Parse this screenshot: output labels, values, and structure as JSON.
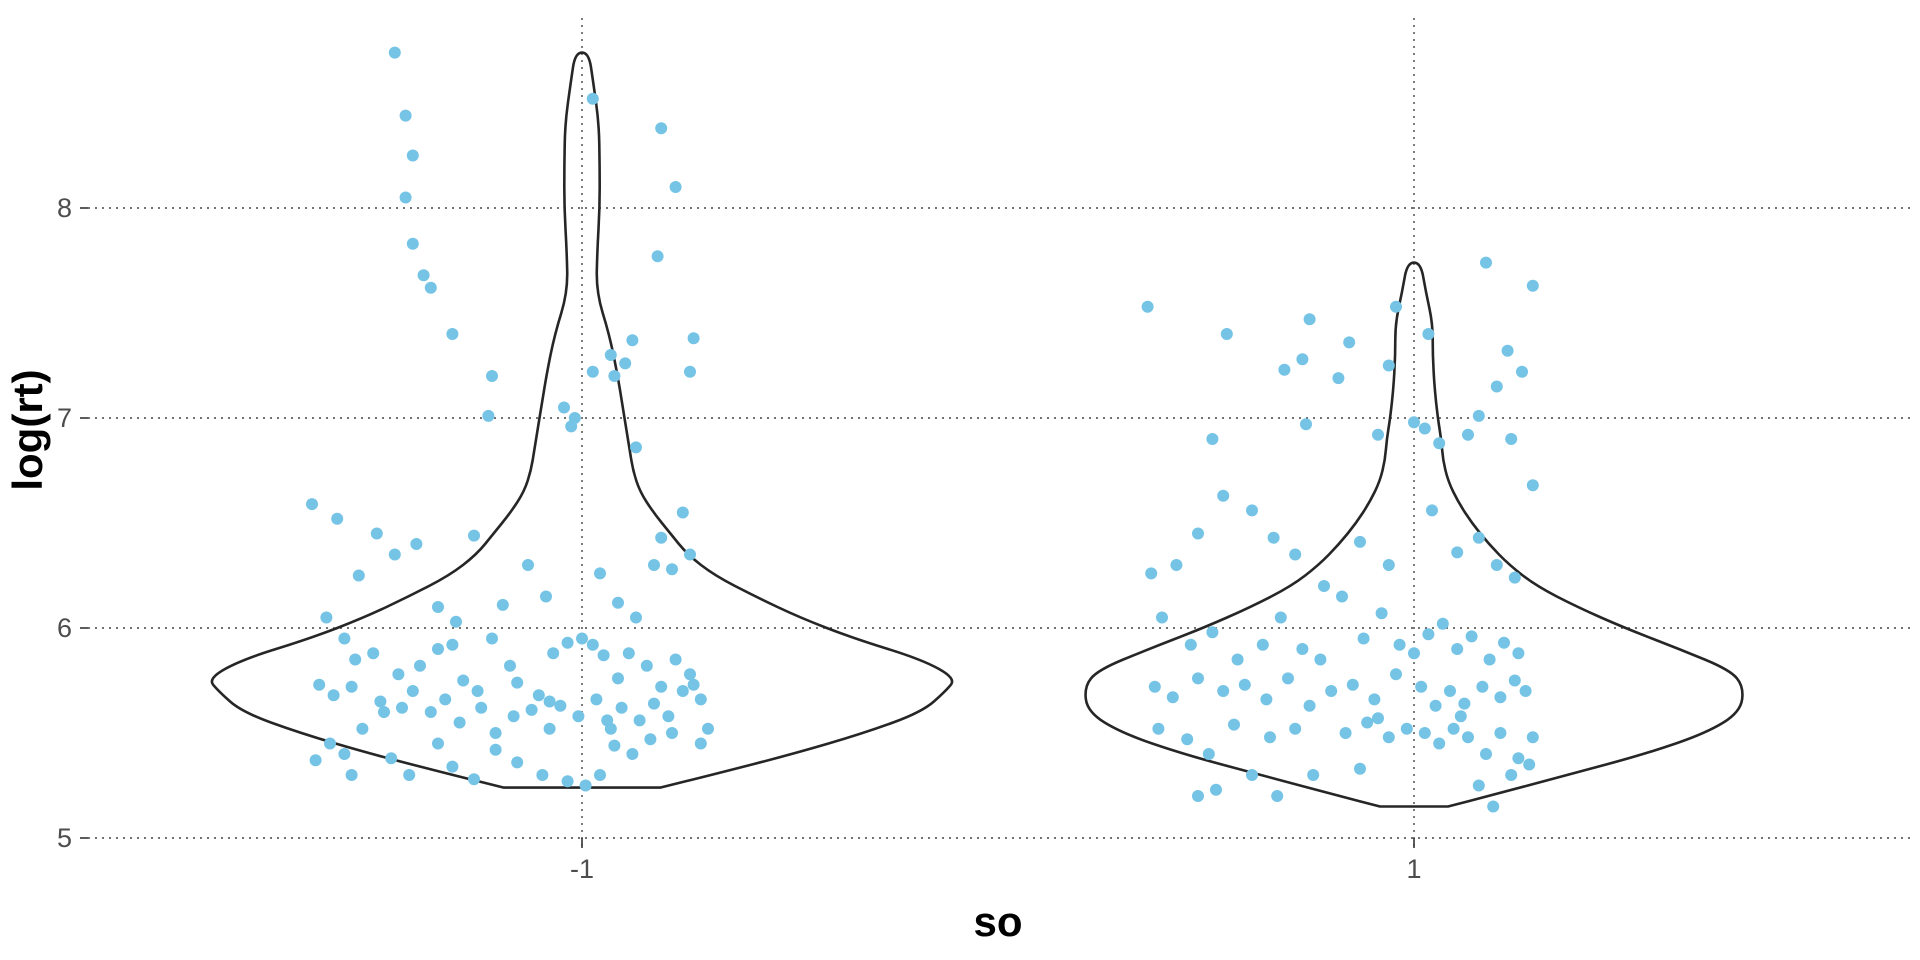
{
  "chart_data": {
    "type": "violin",
    "xlabel": "so",
    "ylabel": "log(rt)",
    "categories": [
      "-1",
      "1"
    ],
    "ylim": [
      4.95,
      8.9
    ],
    "y_ticks": [
      "5",
      "6",
      "7",
      "8"
    ],
    "grid": true,
    "point_color": "#75c4e6",
    "line_color": "#262626",
    "violins": [
      {
        "category": "-1",
        "min": 5.24,
        "max": 8.74,
        "profile": [
          [
            5.24,
            0.23
          ],
          [
            5.3,
            0.38
          ],
          [
            5.4,
            0.62
          ],
          [
            5.5,
            0.83
          ],
          [
            5.6,
            1.0
          ],
          [
            5.7,
            1.07
          ],
          [
            5.76,
            1.1
          ],
          [
            5.85,
            1.0
          ],
          [
            5.95,
            0.8
          ],
          [
            6.05,
            0.64
          ],
          [
            6.15,
            0.51
          ],
          [
            6.25,
            0.39
          ],
          [
            6.35,
            0.31
          ],
          [
            6.45,
            0.26
          ],
          [
            6.55,
            0.21
          ],
          [
            6.65,
            0.17
          ],
          [
            6.75,
            0.15
          ],
          [
            6.85,
            0.14
          ],
          [
            6.95,
            0.13
          ],
          [
            7.05,
            0.12
          ],
          [
            7.2,
            0.105
          ],
          [
            7.4,
            0.08
          ],
          [
            7.6,
            0.042
          ],
          [
            7.8,
            0.045
          ],
          [
            8.0,
            0.052
          ],
          [
            8.2,
            0.052
          ],
          [
            8.4,
            0.05
          ],
          [
            8.6,
            0.033
          ],
          [
            8.74,
            0.02
          ]
        ],
        "points": [
          [
            -0.52,
            8.74
          ],
          [
            -0.49,
            8.44
          ],
          [
            -0.47,
            8.25
          ],
          [
            -0.49,
            8.05
          ],
          [
            -0.47,
            7.83
          ],
          [
            -0.44,
            7.68
          ],
          [
            -0.42,
            7.62
          ],
          [
            -0.36,
            7.4
          ],
          [
            -0.25,
            7.2
          ],
          [
            0.03,
            8.52
          ],
          [
            -0.26,
            7.01
          ],
          [
            0.22,
            8.38
          ],
          [
            0.26,
            8.1
          ],
          [
            0.31,
            7.38
          ],
          [
            0.21,
            7.77
          ],
          [
            0.3,
            7.22
          ],
          [
            0.03,
            7.22
          ],
          [
            0.09,
            7.2
          ],
          [
            -0.05,
            7.05
          ],
          [
            -0.02,
            7.0
          ],
          [
            -0.03,
            6.96
          ],
          [
            0.14,
            7.37
          ],
          [
            0.12,
            7.26
          ],
          [
            0.08,
            7.3
          ],
          [
            0.15,
            6.86
          ],
          [
            0.28,
            6.55
          ],
          [
            0.22,
            6.43
          ],
          [
            -0.75,
            6.59
          ],
          [
            -0.68,
            6.52
          ],
          [
            -0.62,
            6.25
          ],
          [
            -0.57,
            6.45
          ],
          [
            -0.52,
            6.35
          ],
          [
            -0.46,
            6.4
          ],
          [
            -0.4,
            6.1
          ],
          [
            -0.35,
            6.03
          ],
          [
            -0.3,
            6.44
          ],
          [
            -0.22,
            6.11
          ],
          [
            -0.15,
            6.3
          ],
          [
            -0.1,
            6.15
          ],
          [
            0.05,
            6.26
          ],
          [
            0.1,
            6.12
          ],
          [
            0.15,
            6.05
          ],
          [
            0.2,
            6.3
          ],
          [
            0.25,
            6.28
          ],
          [
            0.3,
            6.35
          ],
          [
            -0.71,
            6.05
          ],
          [
            -0.66,
            5.95
          ],
          [
            -0.63,
            5.85
          ],
          [
            -0.58,
            5.88
          ],
          [
            -0.51,
            5.78
          ],
          [
            -0.45,
            5.82
          ],
          [
            -0.4,
            5.9
          ],
          [
            -0.36,
            5.92
          ],
          [
            -0.33,
            5.75
          ],
          [
            -0.29,
            5.7
          ],
          [
            -0.25,
            5.95
          ],
          [
            -0.2,
            5.82
          ],
          [
            -0.18,
            5.74
          ],
          [
            -0.12,
            5.68
          ],
          [
            -0.08,
            5.88
          ],
          [
            -0.04,
            5.93
          ],
          [
            0.0,
            5.95
          ],
          [
            0.03,
            5.92
          ],
          [
            0.06,
            5.87
          ],
          [
            0.1,
            5.76
          ],
          [
            0.13,
            5.88
          ],
          [
            0.18,
            5.82
          ],
          [
            0.22,
            5.72
          ],
          [
            0.26,
            5.85
          ],
          [
            0.3,
            5.78
          ],
          [
            -0.73,
            5.73
          ],
          [
            -0.69,
            5.68
          ],
          [
            -0.64,
            5.72
          ],
          [
            -0.56,
            5.65
          ],
          [
            -0.5,
            5.62
          ],
          [
            -0.47,
            5.7
          ],
          [
            -0.42,
            5.6
          ],
          [
            -0.38,
            5.66
          ],
          [
            -0.34,
            5.55
          ],
          [
            -0.28,
            5.62
          ],
          [
            -0.24,
            5.5
          ],
          [
            -0.19,
            5.58
          ],
          [
            -0.14,
            5.61
          ],
          [
            -0.09,
            5.52
          ],
          [
            -0.06,
            5.63
          ],
          [
            -0.01,
            5.58
          ],
          [
            0.04,
            5.66
          ],
          [
            0.08,
            5.52
          ],
          [
            0.11,
            5.62
          ],
          [
            0.16,
            5.56
          ],
          [
            0.2,
            5.64
          ],
          [
            0.24,
            5.58
          ],
          [
            0.28,
            5.7
          ],
          [
            0.31,
            5.73
          ],
          [
            0.33,
            5.66
          ],
          [
            -0.7,
            5.45
          ],
          [
            -0.66,
            5.4
          ],
          [
            -0.61,
            5.52
          ],
          [
            -0.53,
            5.38
          ],
          [
            -0.48,
            5.3
          ],
          [
            -0.4,
            5.45
          ],
          [
            -0.36,
            5.34
          ],
          [
            -0.3,
            5.28
          ],
          [
            -0.24,
            5.42
          ],
          [
            -0.18,
            5.36
          ],
          [
            -0.11,
            5.3
          ],
          [
            -0.04,
            5.27
          ],
          [
            0.01,
            5.25
          ],
          [
            0.05,
            5.3
          ],
          [
            0.09,
            5.44
          ],
          [
            0.14,
            5.4
          ],
          [
            0.19,
            5.47
          ],
          [
            0.25,
            5.5
          ],
          [
            0.33,
            5.45
          ],
          [
            0.35,
            5.52
          ],
          [
            -0.74,
            5.37
          ],
          [
            -0.64,
            5.3
          ],
          [
            -0.55,
            5.6
          ],
          [
            0.07,
            5.56
          ],
          [
            -0.09,
            5.65
          ]
        ]
      },
      {
        "category": "1",
        "min": 5.15,
        "max": 7.74,
        "profile": [
          [
            5.15,
            0.1
          ],
          [
            5.2,
            0.22
          ],
          [
            5.3,
            0.45
          ],
          [
            5.4,
            0.68
          ],
          [
            5.5,
            0.86
          ],
          [
            5.6,
            0.96
          ],
          [
            5.72,
            0.97
          ],
          [
            5.8,
            0.93
          ],
          [
            5.9,
            0.78
          ],
          [
            6.0,
            0.62
          ],
          [
            6.1,
            0.48
          ],
          [
            6.2,
            0.36
          ],
          [
            6.3,
            0.28
          ],
          [
            6.4,
            0.22
          ],
          [
            6.5,
            0.17
          ],
          [
            6.6,
            0.13
          ],
          [
            6.7,
            0.1
          ],
          [
            6.8,
            0.085
          ],
          [
            6.9,
            0.08
          ],
          [
            7.0,
            0.07
          ],
          [
            7.15,
            0.06
          ],
          [
            7.3,
            0.055
          ],
          [
            7.45,
            0.055
          ],
          [
            7.6,
            0.035
          ],
          [
            7.74,
            0.02
          ]
        ],
        "points": [
          [
            -0.74,
            7.53
          ],
          [
            -0.52,
            7.4
          ],
          [
            -0.29,
            7.47
          ],
          [
            -0.31,
            7.28
          ],
          [
            -0.18,
            7.36
          ],
          [
            -0.05,
            7.53
          ],
          [
            -0.07,
            7.25
          ],
          [
            0.2,
            7.74
          ],
          [
            0.33,
            7.63
          ],
          [
            0.3,
            7.22
          ],
          [
            0.26,
            7.32
          ],
          [
            0.23,
            7.15
          ],
          [
            0.04,
            7.4
          ],
          [
            -0.36,
            7.23
          ],
          [
            -0.21,
            7.19
          ],
          [
            -0.56,
            6.9
          ],
          [
            -0.3,
            6.97
          ],
          [
            -0.1,
            6.92
          ],
          [
            0.0,
            6.98
          ],
          [
            0.03,
            6.95
          ],
          [
            0.07,
            6.88
          ],
          [
            0.18,
            7.01
          ],
          [
            0.15,
            6.92
          ],
          [
            0.27,
            6.9
          ],
          [
            0.33,
            6.68
          ],
          [
            -0.73,
            6.26
          ],
          [
            -0.66,
            6.3
          ],
          [
            -0.6,
            6.45
          ],
          [
            -0.53,
            6.63
          ],
          [
            -0.45,
            6.56
          ],
          [
            -0.39,
            6.43
          ],
          [
            -0.33,
            6.35
          ],
          [
            -0.25,
            6.2
          ],
          [
            -0.15,
            6.41
          ],
          [
            -0.07,
            6.3
          ],
          [
            0.05,
            6.56
          ],
          [
            0.12,
            6.36
          ],
          [
            0.18,
            6.43
          ],
          [
            0.23,
            6.3
          ],
          [
            0.28,
            6.24
          ],
          [
            -0.7,
            6.05
          ],
          [
            -0.62,
            5.92
          ],
          [
            -0.56,
            5.98
          ],
          [
            -0.49,
            5.85
          ],
          [
            -0.42,
            5.92
          ],
          [
            -0.37,
            6.05
          ],
          [
            -0.31,
            5.9
          ],
          [
            -0.26,
            5.85
          ],
          [
            -0.2,
            6.15
          ],
          [
            -0.14,
            5.95
          ],
          [
            -0.09,
            6.07
          ],
          [
            -0.04,
            5.92
          ],
          [
            0.0,
            5.88
          ],
          [
            0.04,
            5.97
          ],
          [
            0.08,
            6.02
          ],
          [
            0.12,
            5.9
          ],
          [
            0.16,
            5.96
          ],
          [
            0.21,
            5.85
          ],
          [
            0.25,
            5.93
          ],
          [
            0.29,
            5.88
          ],
          [
            -0.72,
            5.72
          ],
          [
            -0.67,
            5.67
          ],
          [
            -0.6,
            5.76
          ],
          [
            -0.53,
            5.7
          ],
          [
            -0.47,
            5.73
          ],
          [
            -0.41,
            5.66
          ],
          [
            -0.35,
            5.76
          ],
          [
            -0.29,
            5.63
          ],
          [
            -0.23,
            5.7
          ],
          [
            -0.17,
            5.73
          ],
          [
            -0.11,
            5.66
          ],
          [
            -0.05,
            5.78
          ],
          [
            0.02,
            5.72
          ],
          [
            0.06,
            5.63
          ],
          [
            0.1,
            5.7
          ],
          [
            0.14,
            5.64
          ],
          [
            0.19,
            5.72
          ],
          [
            0.24,
            5.67
          ],
          [
            0.28,
            5.75
          ],
          [
            0.31,
            5.7
          ],
          [
            -0.71,
            5.52
          ],
          [
            -0.63,
            5.47
          ],
          [
            -0.57,
            5.4
          ],
          [
            -0.5,
            5.54
          ],
          [
            -0.45,
            5.3
          ],
          [
            -0.4,
            5.48
          ],
          [
            -0.33,
            5.52
          ],
          [
            -0.28,
            5.3
          ],
          [
            -0.19,
            5.5
          ],
          [
            -0.13,
            5.55
          ],
          [
            -0.07,
            5.48
          ],
          [
            -0.02,
            5.52
          ],
          [
            0.03,
            5.5
          ],
          [
            0.07,
            5.45
          ],
          [
            0.11,
            5.52
          ],
          [
            0.15,
            5.48
          ],
          [
            0.2,
            5.4
          ],
          [
            0.24,
            5.5
          ],
          [
            0.29,
            5.38
          ],
          [
            0.33,
            5.48
          ],
          [
            -0.6,
            5.2
          ],
          [
            -0.55,
            5.23
          ],
          [
            -0.38,
            5.2
          ],
          [
            -0.15,
            5.33
          ],
          [
            0.18,
            5.25
          ],
          [
            0.27,
            5.3
          ],
          [
            0.22,
            5.15
          ],
          [
            0.32,
            5.35
          ],
          [
            -0.1,
            5.57
          ],
          [
            0.13,
            5.58
          ]
        ]
      }
    ]
  }
}
